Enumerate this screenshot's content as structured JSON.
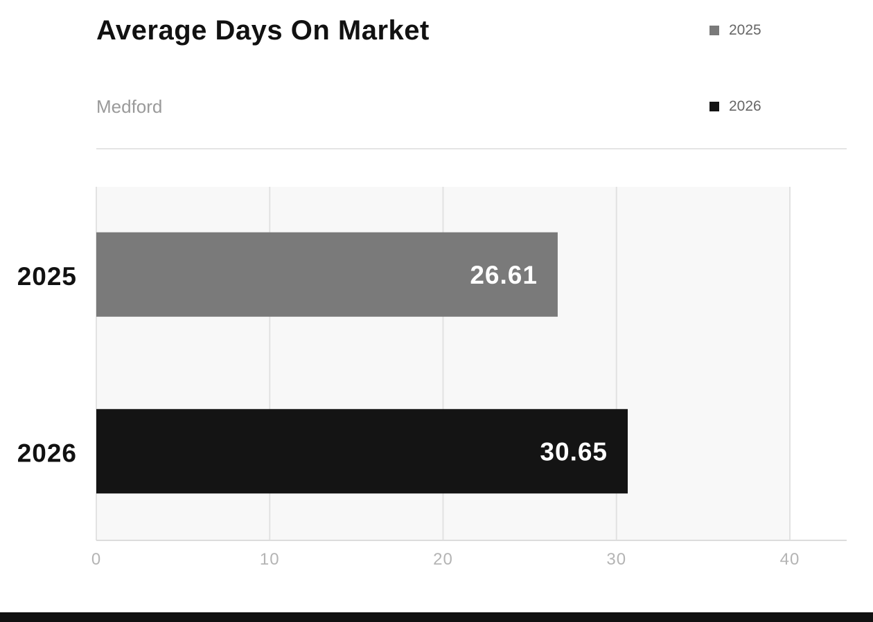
{
  "header": {
    "title": "Average Days On Market",
    "subtitle": "Medford"
  },
  "legend": [
    {
      "label": "2025",
      "color": "#7a7a7a"
    },
    {
      "label": "2026",
      "color": "#141414"
    }
  ],
  "chart_data": {
    "type": "bar",
    "orientation": "horizontal",
    "title": "Average Days On Market",
    "subtitle": "Medford",
    "categories": [
      "2025",
      "2026"
    ],
    "values": [
      26.61,
      30.65
    ],
    "colors": [
      "#7a7a7a",
      "#141414"
    ],
    "data_labels": [
      "26.61",
      "30.65"
    ],
    "xlim": [
      0,
      40
    ],
    "x_ticks": [
      0,
      10,
      20,
      30,
      40
    ],
    "grid": true,
    "legend_position": "top-right",
    "xlabel": "",
    "ylabel": ""
  }
}
